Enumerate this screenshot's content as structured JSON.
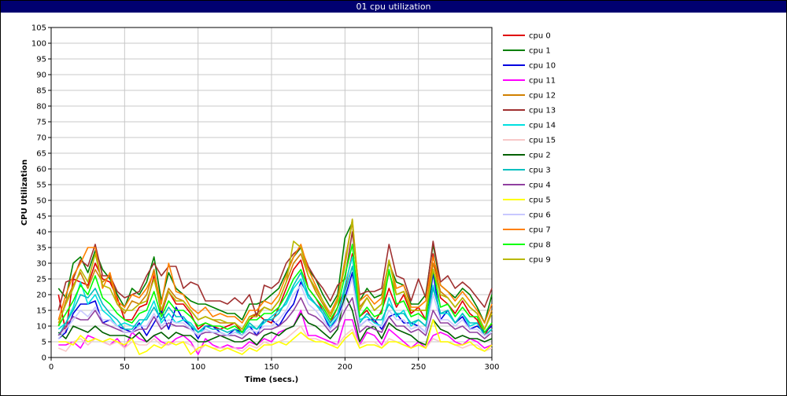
{
  "window": {
    "title": "01 cpu utilization"
  },
  "chart_data": {
    "type": "line",
    "title": "",
    "xlabel": "Time (secs.)",
    "ylabel": "CPU Utilization",
    "xlim": [
      0,
      300
    ],
    "ylim": [
      0,
      105
    ],
    "xticks": [
      0,
      50,
      100,
      150,
      200,
      250,
      300
    ],
    "yticks": [
      0,
      5,
      10,
      15,
      20,
      25,
      30,
      35,
      40,
      45,
      50,
      55,
      60,
      65,
      70,
      75,
      80,
      85,
      90,
      95,
      100,
      105
    ],
    "grid": true,
    "legend": "right",
    "x": [
      5,
      10,
      15,
      20,
      25,
      30,
      35,
      40,
      45,
      50,
      55,
      60,
      65,
      70,
      75,
      80,
      85,
      90,
      95,
      100,
      105,
      110,
      115,
      120,
      125,
      130,
      135,
      140,
      145,
      150,
      155,
      160,
      165,
      170,
      175,
      180,
      185,
      190,
      195,
      200,
      205,
      210,
      215,
      220,
      225,
      230,
      235,
      240,
      245,
      250,
      255,
      260,
      265,
      270,
      275,
      280,
      285,
      290,
      295,
      300
    ],
    "series": [
      {
        "name": "cpu 0",
        "color": "#e00000",
        "values": [
          20,
          8,
          25,
          24,
          23,
          30,
          25,
          24,
          19,
          12,
          12,
          16,
          17,
          26,
          14,
          21,
          17,
          17,
          14,
          9,
          11,
          10,
          9,
          10,
          11,
          8,
          12,
          14,
          12,
          11,
          16,
          22,
          28,
          31,
          22,
          19,
          15,
          11,
          16,
          22,
          33,
          13,
          15,
          11,
          15,
          22,
          16,
          20,
          14,
          16,
          12,
          33,
          19,
          17,
          14,
          18,
          14,
          12,
          7,
          11
        ]
      },
      {
        "name": "cpu 1",
        "color": "#008000",
        "values": [
          22,
          19,
          30,
          32,
          27,
          34,
          28,
          25,
          20,
          16,
          22,
          20,
          24,
          32,
          18,
          27,
          22,
          20,
          18,
          17,
          17,
          16,
          15,
          14,
          14,
          12,
          17,
          17,
          18,
          20,
          22,
          27,
          32,
          35,
          28,
          25,
          20,
          16,
          20,
          38,
          43,
          18,
          22,
          19,
          20,
          30,
          24,
          23,
          17,
          17,
          20,
          36,
          23,
          21,
          19,
          22,
          20,
          16,
          11,
          20
        ]
      },
      {
        "name": "cpu 10",
        "color": "#0000e0",
        "values": [
          6,
          8,
          14,
          17,
          17,
          18,
          11,
          12,
          10,
          9,
          8,
          11,
          7,
          11,
          15,
          9,
          16,
          12,
          10,
          6,
          10,
          10,
          8,
          7,
          9,
          8,
          10,
          7,
          12,
          12,
          10,
          14,
          17,
          24,
          20,
          17,
          14,
          9,
          13,
          19,
          27,
          10,
          12,
          12,
          9,
          13,
          14,
          11,
          11,
          10,
          8,
          27,
          12,
          15,
          11,
          13,
          9,
          10,
          8,
          10
        ]
      },
      {
        "name": "cpu 11",
        "color": "#ff00ff",
        "values": [
          4,
          4,
          5,
          3,
          7,
          6,
          5,
          4,
          6,
          3,
          8,
          6,
          5,
          7,
          5,
          4,
          6,
          7,
          5,
          1,
          6,
          4,
          3,
          4,
          3,
          3,
          5,
          4,
          6,
          5,
          8,
          9,
          10,
          15,
          7,
          7,
          6,
          5,
          4,
          12,
          12,
          4,
          8,
          7,
          4,
          9,
          7,
          5,
          3,
          5,
          3,
          7,
          8,
          7,
          5,
          4,
          6,
          5,
          3,
          4
        ]
      },
      {
        "name": "cpu 12",
        "color": "#d08000",
        "values": [
          10,
          18,
          23,
          27,
          22,
          28,
          24,
          26,
          17,
          14,
          18,
          17,
          20,
          28,
          15,
          22,
          19,
          18,
          15,
          12,
          13,
          12,
          11,
          11,
          11,
          9,
          13,
          14,
          16,
          15,
          18,
          24,
          30,
          33,
          26,
          21,
          17,
          13,
          18,
          31,
          43,
          16,
          19,
          15,
          17,
          27,
          20,
          21,
          15,
          15,
          15,
          30,
          21,
          19,
          16,
          19,
          16,
          14,
          9,
          15
        ]
      },
      {
        "name": "cpu 13",
        "color": "#a03030",
        "values": [
          15,
          24,
          25,
          31,
          29,
          36,
          26,
          26,
          21,
          19,
          20,
          21,
          26,
          30,
          26,
          29,
          29,
          22,
          24,
          23,
          18,
          18,
          18,
          17,
          19,
          17,
          20,
          13,
          23,
          22,
          24,
          30,
          33,
          35,
          29,
          25,
          22,
          18,
          23,
          25,
          40,
          20,
          21,
          21,
          22,
          36,
          26,
          25,
          18,
          25,
          19,
          37,
          24,
          26,
          22,
          24,
          22,
          19,
          16,
          22
        ]
      },
      {
        "name": "cpu 14",
        "color": "#00e0e0",
        "values": [
          9,
          11,
          16,
          24,
          17,
          20,
          15,
          13,
          10,
          11,
          10,
          10,
          13,
          18,
          11,
          14,
          11,
          12,
          11,
          8,
          9,
          8,
          8,
          7,
          8,
          8,
          10,
          9,
          11,
          13,
          15,
          17,
          22,
          25,
          19,
          17,
          14,
          10,
          13,
          23,
          32,
          12,
          13,
          11,
          10,
          19,
          13,
          15,
          10,
          12,
          10,
          23,
          14,
          14,
          11,
          14,
          10,
          11,
          7,
          9
        ]
      },
      {
        "name": "cpu 15",
        "color": "#f8c8c8",
        "values": [
          3,
          2,
          5,
          6,
          4,
          6,
          5,
          4,
          5,
          3,
          5,
          4,
          4,
          6,
          4,
          4,
          5,
          5,
          4,
          2,
          4,
          3,
          3,
          3,
          3,
          2,
          4,
          3,
          5,
          4,
          5,
          6,
          8,
          10,
          6,
          6,
          5,
          4,
          4,
          7,
          9,
          4,
          5,
          5,
          3,
          6,
          5,
          4,
          3,
          4,
          3,
          6,
          5,
          5,
          4,
          3,
          4,
          4,
          2,
          3
        ]
      },
      {
        "name": "cpu 2",
        "color": "#006000",
        "values": [
          8,
          6,
          10,
          9,
          8,
          10,
          8,
          7,
          7,
          7,
          6,
          8,
          5,
          7,
          8,
          6,
          8,
          7,
          7,
          5,
          5,
          6,
          7,
          6,
          5,
          5,
          6,
          4,
          7,
          8,
          7,
          9,
          10,
          14,
          11,
          10,
          8,
          6,
          9,
          20,
          15,
          5,
          9,
          10,
          6,
          11,
          9,
          8,
          7,
          5,
          4,
          12,
          9,
          8,
          6,
          7,
          6,
          6,
          5,
          6
        ]
      },
      {
        "name": "cpu 3",
        "color": "#00c0c0",
        "values": [
          7,
          11,
          15,
          20,
          19,
          22,
          17,
          14,
          12,
          9,
          9,
          12,
          12,
          16,
          12,
          16,
          13,
          13,
          10,
          8,
          10,
          9,
          9,
          8,
          9,
          7,
          11,
          9,
          12,
          12,
          14,
          18,
          23,
          27,
          20,
          17,
          15,
          11,
          14,
          21,
          29,
          11,
          14,
          12,
          12,
          17,
          14,
          14,
          11,
          12,
          10,
          22,
          14,
          15,
          11,
          14,
          11,
          11,
          7,
          9
        ]
      },
      {
        "name": "cpu 4",
        "color": "#9040a0",
        "values": [
          7,
          10,
          13,
          12,
          12,
          15,
          11,
          10,
          9,
          8,
          8,
          9,
          9,
          13,
          9,
          11,
          10,
          10,
          9,
          7,
          8,
          8,
          7,
          7,
          7,
          6,
          8,
          7,
          9,
          9,
          10,
          12,
          15,
          19,
          14,
          13,
          11,
          8,
          10,
          15,
          19,
          8,
          10,
          9,
          8,
          13,
          10,
          10,
          8,
          9,
          7,
          15,
          11,
          11,
          9,
          10,
          8,
          8,
          6,
          8
        ]
      },
      {
        "name": "cpu 5",
        "color": "#ffff00",
        "values": [
          5,
          5,
          4,
          7,
          5,
          6,
          5,
          6,
          5,
          4,
          6,
          1,
          2,
          4,
          3,
          5,
          4,
          5,
          1,
          3,
          4,
          3,
          2,
          3,
          2,
          1,
          3,
          2,
          4,
          4,
          5,
          4,
          6,
          8,
          6,
          5,
          5,
          4,
          3,
          6,
          8,
          3,
          4,
          4,
          3,
          5,
          5,
          4,
          3,
          4,
          3,
          12,
          5,
          5,
          4,
          4,
          5,
          3,
          2,
          4
        ]
      },
      {
        "name": "cpu 6",
        "color": "#c8c8ff",
        "values": [
          6,
          9,
          12,
          15,
          13,
          16,
          12,
          12,
          10,
          8,
          8,
          10,
          10,
          14,
          10,
          12,
          11,
          11,
          9,
          7,
          9,
          8,
          8,
          7,
          8,
          7,
          9,
          8,
          10,
          10,
          12,
          15,
          20,
          23,
          17,
          15,
          12,
          9,
          12,
          18,
          25,
          10,
          12,
          10,
          10,
          15,
          12,
          12,
          9,
          10,
          8,
          20,
          12,
          12,
          10,
          12,
          9,
          9,
          7,
          8
        ]
      },
      {
        "name": "cpu 7",
        "color": "#ff8000",
        "values": [
          12,
          20,
          26,
          30,
          35,
          35,
          22,
          27,
          18,
          16,
          20,
          19,
          22,
          27,
          17,
          30,
          21,
          20,
          16,
          14,
          16,
          13,
          14,
          13,
          13,
          11,
          15,
          15,
          18,
          17,
          20,
          26,
          32,
          36,
          28,
          23,
          18,
          14,
          19,
          30,
          44,
          18,
          20,
          17,
          19,
          31,
          22,
          23,
          16,
          16,
          18,
          32,
          23,
          21,
          18,
          21,
          18,
          15,
          11,
          17
        ]
      },
      {
        "name": "cpu 8",
        "color": "#00ff00",
        "values": [
          10,
          14,
          18,
          23,
          20,
          26,
          19,
          17,
          14,
          12,
          11,
          14,
          15,
          21,
          13,
          18,
          15,
          15,
          13,
          10,
          11,
          10,
          10,
          9,
          10,
          8,
          12,
          12,
          14,
          14,
          16,
          20,
          25,
          28,
          22,
          19,
          16,
          12,
          16,
          26,
          36,
          13,
          16,
          13,
          14,
          28,
          17,
          18,
          13,
          14,
          12,
          28,
          16,
          17,
          13,
          16,
          13,
          13,
          8,
          11
        ]
      },
      {
        "name": "cpu 9",
        "color": "#b8b800",
        "values": [
          11,
          17,
          22,
          28,
          24,
          33,
          23,
          22,
          17,
          15,
          15,
          17,
          18,
          25,
          15,
          21,
          18,
          18,
          15,
          12,
          13,
          12,
          12,
          11,
          11,
          9,
          13,
          13,
          16,
          15,
          18,
          24,
          37,
          35,
          26,
          22,
          18,
          13,
          18,
          29,
          44,
          15,
          19,
          15,
          17,
          31,
          20,
          21,
          15,
          15,
          15,
          28,
          20,
          19,
          16,
          19,
          16,
          14,
          9,
          14
        ]
      }
    ]
  }
}
